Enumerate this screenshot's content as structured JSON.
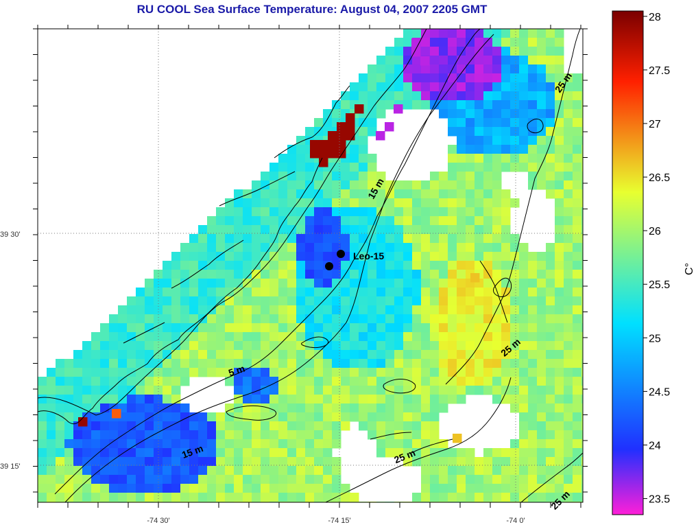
{
  "title": "RU COOL  Sea Surface Temperature:  August 04, 2007 2205 GMT",
  "axes": {
    "lon_ticks": [
      "-74 30'",
      "-74 15'",
      "-74 0'"
    ],
    "lat_ticks": [
      "39 30'",
      "39 15'"
    ]
  },
  "colorbar": {
    "unit_label": "C°",
    "ticks": [
      "28",
      "27.5",
      "27",
      "26.5",
      "26",
      "25.5",
      "25",
      "24.5",
      "24",
      "23.5"
    ],
    "min": 23.35,
    "max": 28.05,
    "colors": [
      "#ff1fd8",
      "#2030ff",
      "#00e0ff",
      "#e8ff30",
      "#ff2000",
      "#7a0000"
    ]
  },
  "contour_labels": [
    "25 m",
    "15 m",
    "25 m",
    "5 m",
    "15 m",
    "25 m",
    "25 m"
  ],
  "station": {
    "label": "Leo-15"
  }
}
